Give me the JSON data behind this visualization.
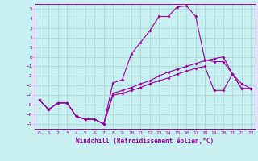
{
  "xlabel": "Windchill (Refroidissement éolien,°C)",
  "ylabel": "",
  "background_color": "#c8f0f0",
  "grid_color": "#a8d8d8",
  "line_color": "#990099",
  "spine_color": "#990099",
  "xlim": [
    -0.5,
    23.5
  ],
  "ylim": [
    -7.5,
    5.5
  ],
  "x_ticks": [
    0,
    1,
    2,
    3,
    4,
    5,
    6,
    7,
    8,
    9,
    10,
    11,
    12,
    13,
    14,
    15,
    16,
    17,
    18,
    19,
    20,
    21,
    22,
    23
  ],
  "y_ticks": [
    -7,
    -6,
    -5,
    -4,
    -3,
    -2,
    -1,
    0,
    1,
    2,
    3,
    4,
    5
  ],
  "line1_x": [
    0,
    1,
    2,
    3,
    4,
    5,
    6,
    7,
    8,
    9,
    10,
    11,
    12,
    13,
    14,
    15,
    16,
    17,
    18,
    19,
    20,
    21,
    22,
    23
  ],
  "line1_y": [
    -4.5,
    -5.5,
    -4.8,
    -4.8,
    -6.2,
    -6.5,
    -6.5,
    -7.0,
    -2.7,
    -2.4,
    0.3,
    1.5,
    2.7,
    4.2,
    4.2,
    5.2,
    5.3,
    4.2,
    -0.3,
    -0.5,
    -0.5,
    -1.8,
    -3.3,
    -3.3
  ],
  "line2_x": [
    0,
    1,
    2,
    3,
    4,
    5,
    6,
    7,
    8,
    9,
    10,
    11,
    12,
    13,
    14,
    15,
    16,
    17,
    18,
    19,
    20,
    21,
    22,
    23
  ],
  "line2_y": [
    -4.5,
    -5.5,
    -4.8,
    -4.8,
    -6.2,
    -6.5,
    -6.5,
    -7.0,
    -3.8,
    -3.5,
    -3.2,
    -2.8,
    -2.5,
    -2.0,
    -1.6,
    -1.3,
    -1.0,
    -0.7,
    -0.4,
    -0.2,
    0.0,
    -1.8,
    -3.3,
    -3.3
  ],
  "line3_x": [
    0,
    1,
    2,
    3,
    4,
    5,
    6,
    7,
    8,
    9,
    10,
    11,
    12,
    13,
    14,
    15,
    16,
    17,
    18,
    19,
    20,
    21,
    22,
    23
  ],
  "line3_y": [
    -4.5,
    -5.5,
    -4.8,
    -4.8,
    -6.2,
    -6.5,
    -6.5,
    -7.0,
    -4.0,
    -3.8,
    -3.5,
    -3.2,
    -2.8,
    -2.5,
    -2.2,
    -1.8,
    -1.5,
    -1.2,
    -1.0,
    -3.5,
    -3.5,
    -1.8,
    -2.8,
    -3.3
  ],
  "tick_fontsize": 4.5,
  "xlabel_fontsize": 5.5,
  "marker_size": 2.0,
  "line_width": 0.8
}
